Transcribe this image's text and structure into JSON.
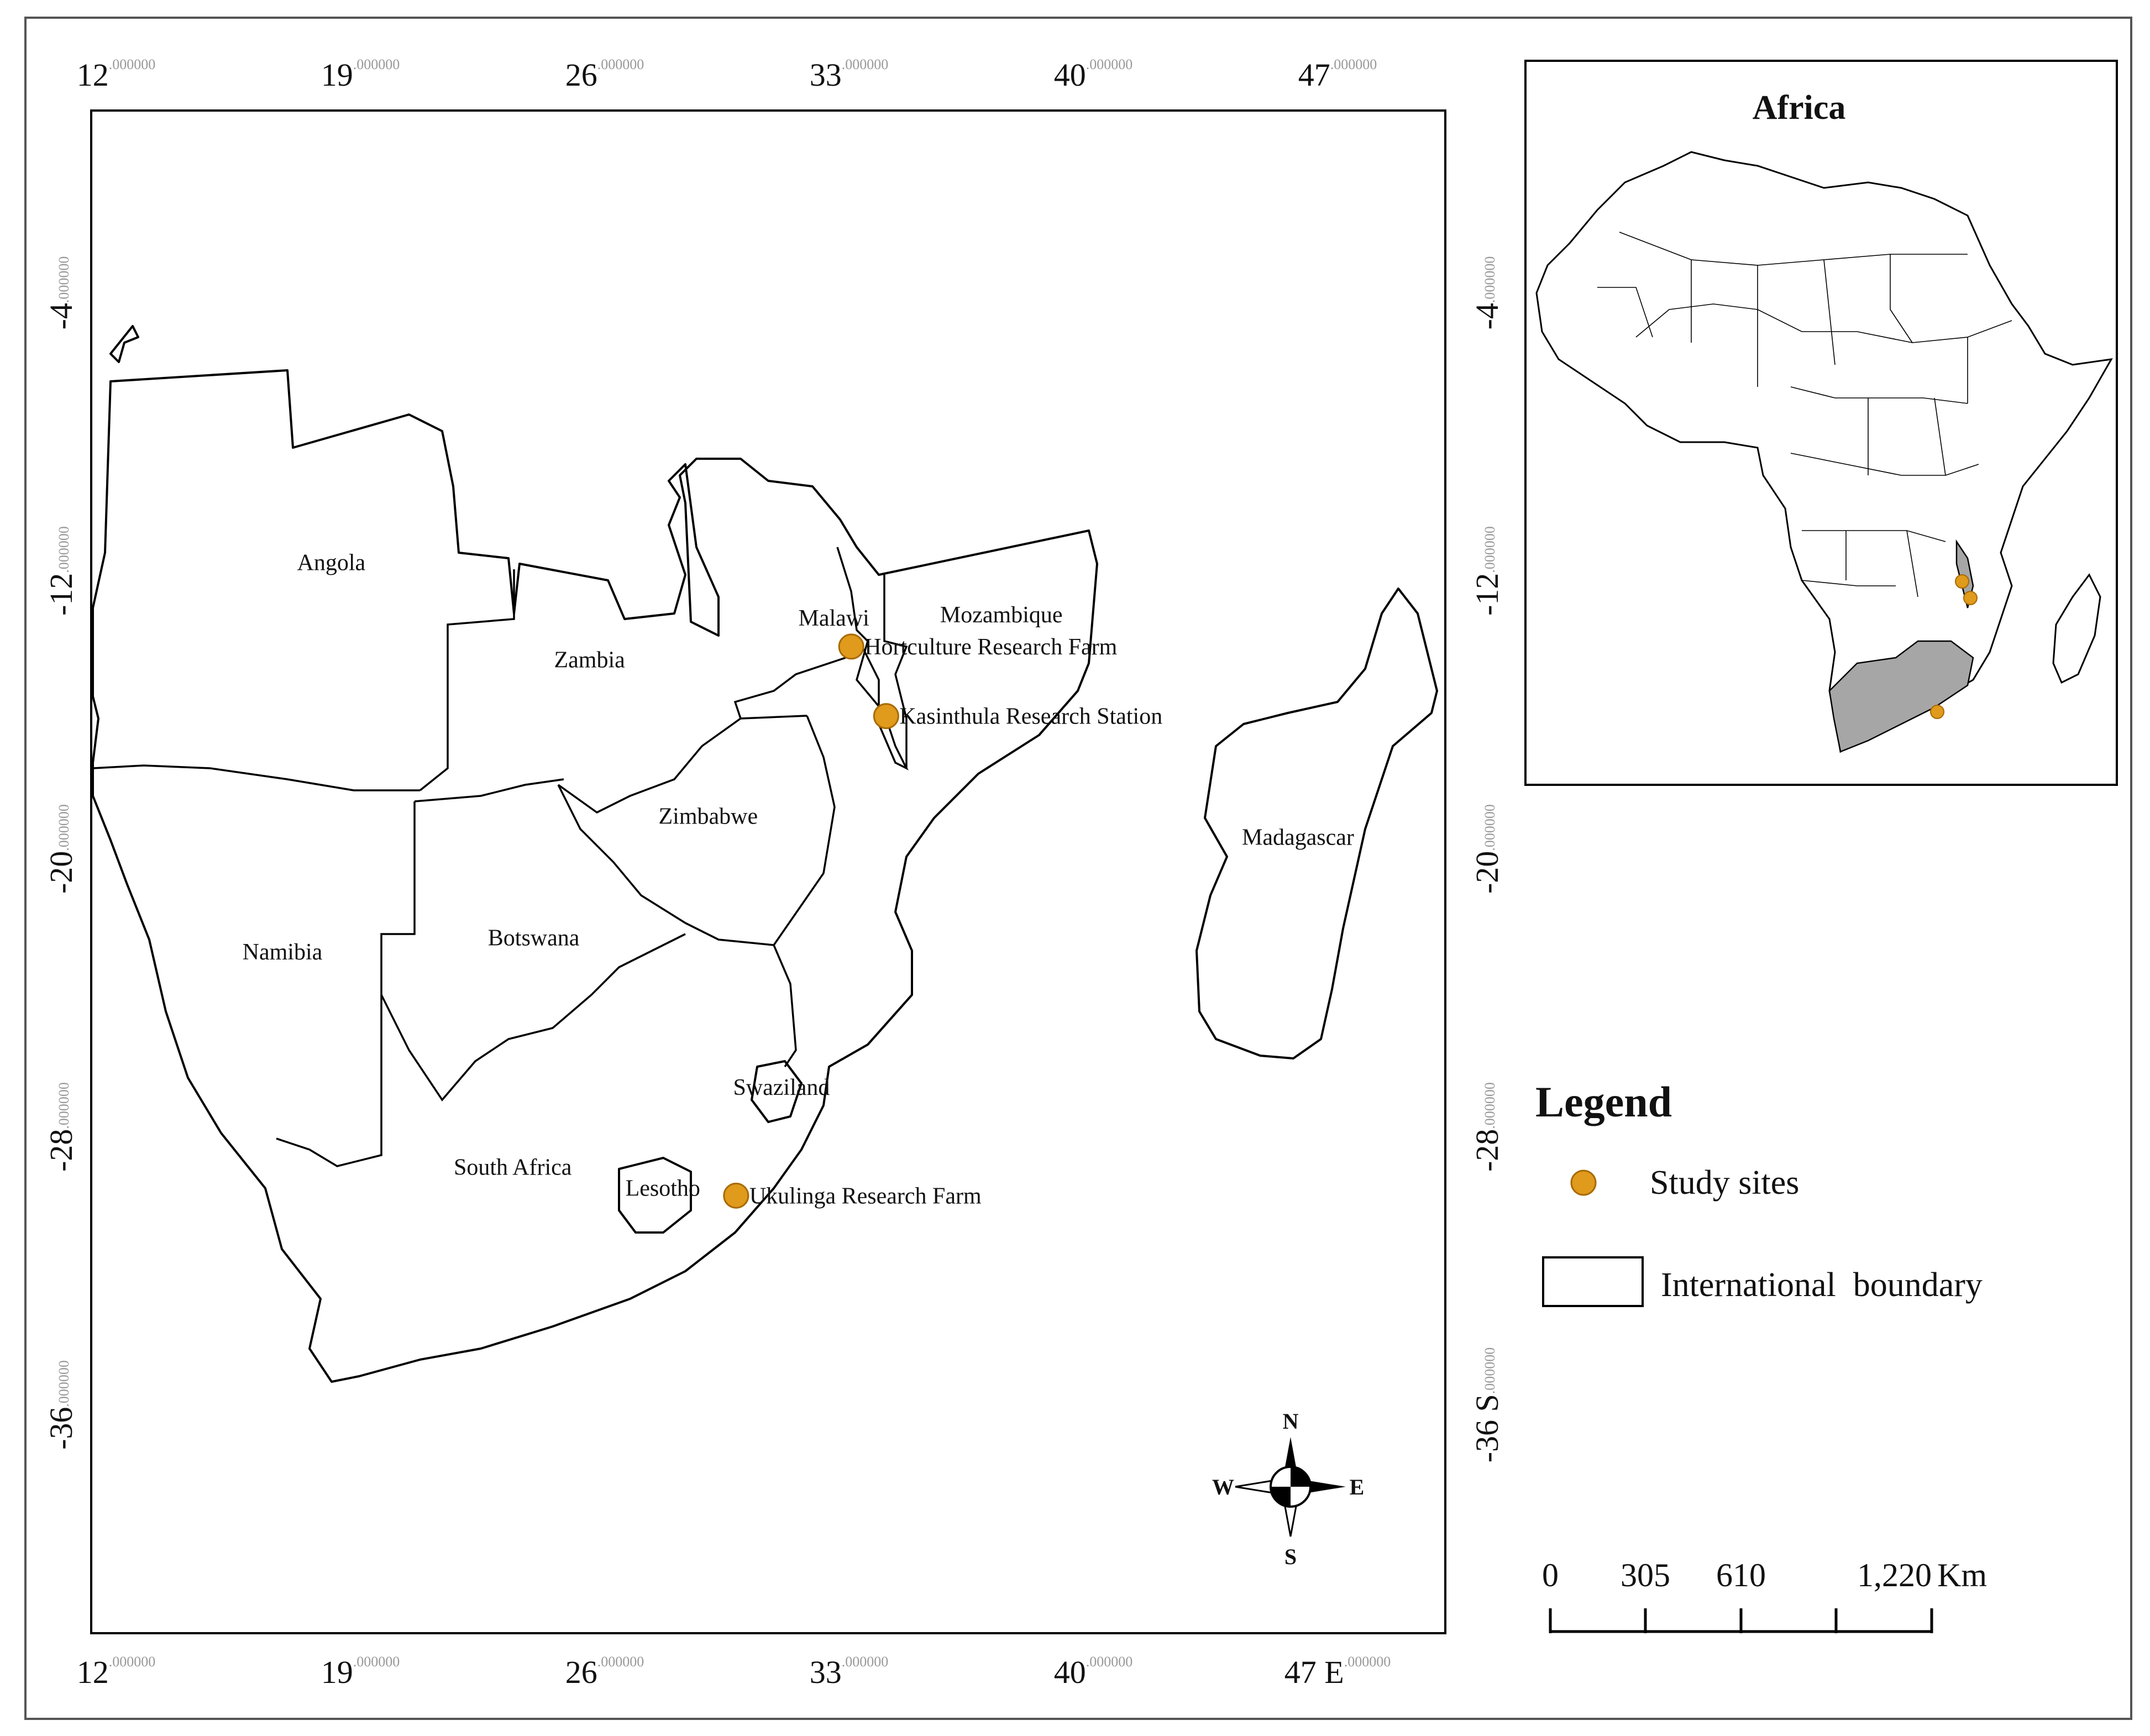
{
  "map": {
    "x_ticks": [
      {
        "major": "12",
        "minor": ".000000"
      },
      {
        "major": "19",
        "minor": ".000000"
      },
      {
        "major": "26",
        "minor": ".000000"
      },
      {
        "major": "33",
        "minor": ".000000"
      },
      {
        "major": "40",
        "minor": ".000000"
      },
      {
        "major": "47",
        "minor": ".000000"
      }
    ],
    "x_bottom_last": "47 E",
    "y_ticks_left": [
      {
        "major": "-4",
        "minor": ".000000"
      },
      {
        "major": "-12",
        "minor": ".000000"
      },
      {
        "major": "-20",
        "minor": ".000000"
      },
      {
        "major": "-28",
        "minor": ".000000"
      },
      {
        "major": "-36",
        "minor": ".000000"
      }
    ],
    "y_right_last": "-36 S",
    "countries": [
      {
        "name": "Angola",
        "lon": 18.8,
        "lat": -11.5
      },
      {
        "name": "Zambia",
        "lon": 26.2,
        "lat": -14.3
      },
      {
        "name": "Malawi",
        "lon": 33.2,
        "lat": -13.1
      },
      {
        "name": "Mozambique",
        "lon": 38.0,
        "lat": -13.0
      },
      {
        "name": "Zimbabwe",
        "lon": 29.6,
        "lat": -18.8
      },
      {
        "name": "Madagascar",
        "lon": 46.5,
        "lat": -19.4
      },
      {
        "name": "Namibia",
        "lon": 17.4,
        "lat": -22.7
      },
      {
        "name": "Botswana",
        "lon": 24.6,
        "lat": -22.3
      },
      {
        "name": "Swaziland",
        "lon": 31.7,
        "lat": -26.6
      },
      {
        "name": "South Africa",
        "lon": 24.0,
        "lat": -28.9
      },
      {
        "name": "Lesotho",
        "lon": 28.3,
        "lat": -29.5
      }
    ],
    "sites": [
      {
        "name": "Hortculture Research Farm",
        "lon": 33.7,
        "lat": -13.7
      },
      {
        "name": "Kasinthula Research Station",
        "lon": 34.7,
        "lat": -15.7
      },
      {
        "name": "Ukulinga Research Farm",
        "lon": 30.4,
        "lat": -29.5
      }
    ]
  },
  "inset": {
    "title": "Africa"
  },
  "legend": {
    "title": "Legend",
    "items": [
      {
        "label": "Study sites",
        "symbol": "orange-dot",
        "color": "#e09a1c"
      },
      {
        "label": "International  boundary",
        "symbol": "box"
      }
    ]
  },
  "scale_bar": {
    "labels": [
      "0",
      "305",
      "610",
      "1,220"
    ],
    "unit": "Km"
  },
  "compass": {
    "n": "N",
    "s": "S",
    "e": "E",
    "w": "W"
  },
  "colors": {
    "site": "#e09a1c",
    "highlight": "#a6a6a6"
  }
}
